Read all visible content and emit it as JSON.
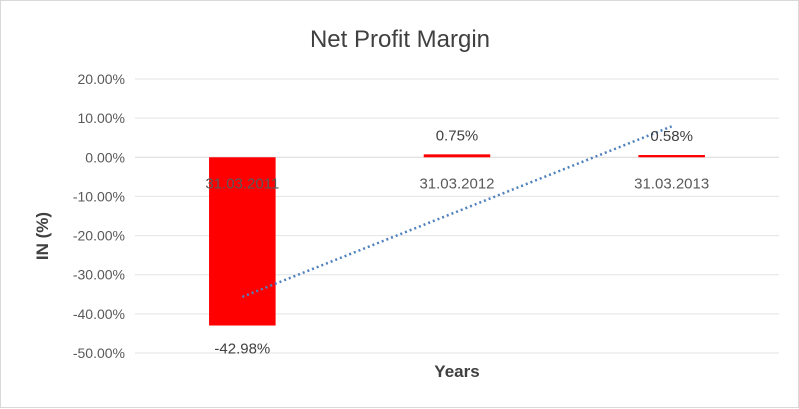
{
  "chart_data": {
    "type": "bar",
    "title": "Net Profit Margin",
    "xlabel": "Years",
    "ylabel": "IN (%)",
    "categories": [
      "31.03.2011",
      "31.03.2012",
      "31.03.2013"
    ],
    "series": [
      {
        "values": [
          -42.98,
          0.75,
          0.58
        ],
        "color": "#ff0000"
      }
    ],
    "data_labels": [
      "-42.98%",
      "0.75%",
      "0.58%"
    ],
    "ylim": [
      -50,
      20
    ],
    "yticks": [
      20,
      10,
      0,
      -10,
      -20,
      -30,
      -40,
      -50
    ],
    "ytick_labels": [
      "20.00%",
      "10.00%",
      "0.00%",
      "-10.00%",
      "-20.00%",
      "-30.00%",
      "-40.00%",
      "-50.00%"
    ],
    "trendline": {
      "type": "linear",
      "color": "#4f81bd",
      "style": "dotted"
    },
    "grid": true,
    "legend": false
  }
}
